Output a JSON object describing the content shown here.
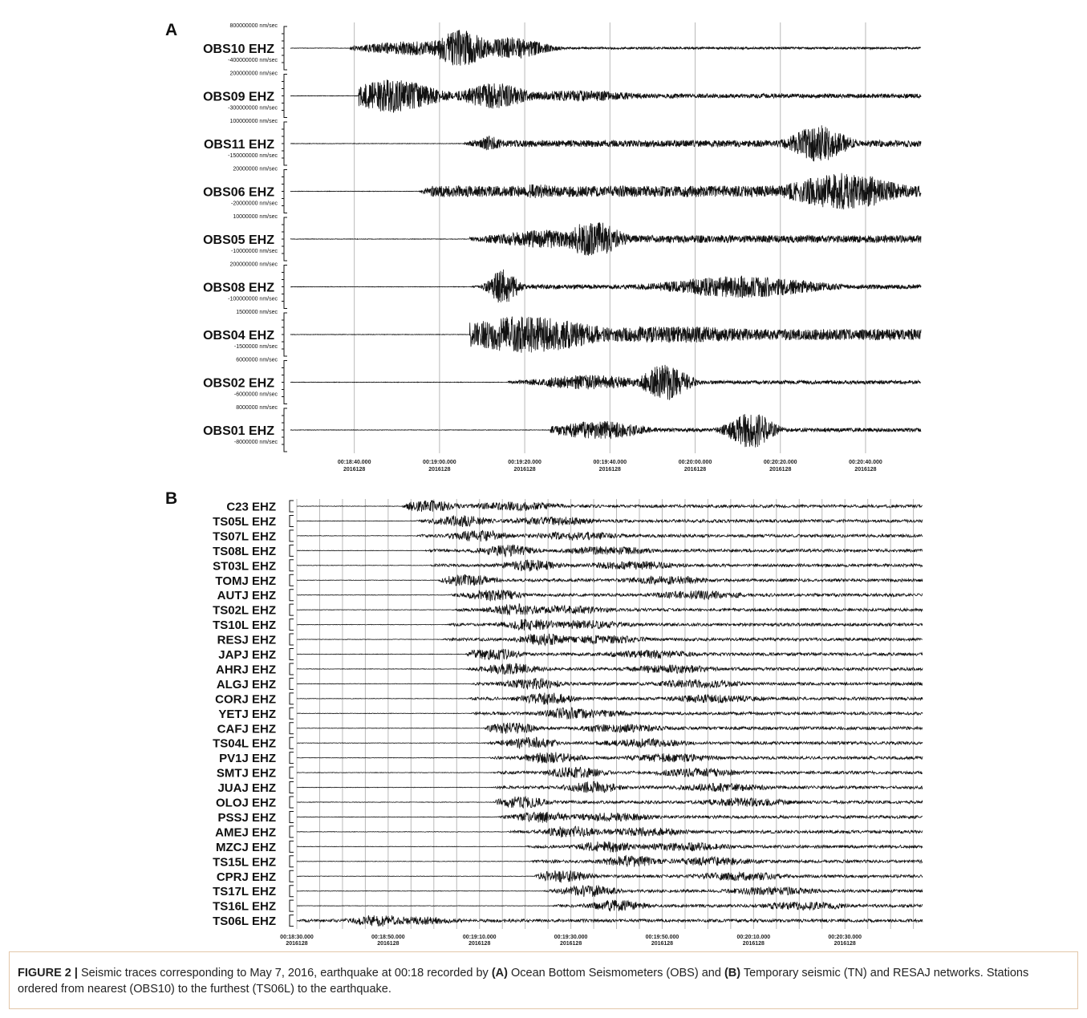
{
  "figure": {
    "panel_a_label": "A",
    "panel_b_label": "B",
    "caption": {
      "label": "FIGURE 2 |",
      "t1": "Seismic traces corresponding to May 7, 2016, earthquake at 00:18 recorded by",
      "a": "(A)",
      "t2": "Ocean Bottom Seismometers (OBS) and",
      "b": "(B)",
      "t3": "Temporary seismic (TN) and RESAJ networks. Stations ordered from nearest (OBS10) to the furthest (TS06L) to the earthquake."
    }
  },
  "chart_data": [
    {
      "type": "line",
      "panel": "A",
      "x_ticks": [
        {
          "time": "00:18:40.000",
          "date": "2016128"
        },
        {
          "time": "00:19:00.000",
          "date": "2016128"
        },
        {
          "time": "00:19:20.000",
          "date": "2016128"
        },
        {
          "time": "00:19:40.000",
          "date": "2016128"
        },
        {
          "time": "00:20:00.000",
          "date": "2016128"
        },
        {
          "time": "00:20:20.000",
          "date": "2016128"
        },
        {
          "time": "00:20:40.000",
          "date": "2016128"
        }
      ],
      "xlim": [
        "00:18:25",
        "00:20:53"
      ],
      "series": [
        {
          "name": "OBS10 EHZ",
          "amp_top": "800000000 nm/sec",
          "amp_bottom": "-400000000 nm/sec",
          "onset": 14,
          "bursts": [
            [
              40,
              5,
              1.0
            ],
            [
              52,
              6,
              0.6
            ],
            [
              30,
              10,
              0.4
            ]
          ],
          "tail": 0.06
        },
        {
          "name": "OBS09 EHZ",
          "amp_top": "200000000 nm/sec",
          "amp_bottom": "-300000000 nm/sec",
          "onset": 16,
          "bursts": [
            [
              24,
              8,
              0.9
            ],
            [
              48,
              6,
              0.7
            ],
            [
              68,
              12,
              0.3
            ]
          ],
          "tail": 0.12
        },
        {
          "name": "OBS11 EHZ",
          "amp_top": "100000000 nm/sec",
          "amp_bottom": "-150000000 nm/sec",
          "onset": 40,
          "bursts": [
            [
              47,
              2,
              0.45
            ],
            [
              124,
              5,
              1.0
            ]
          ],
          "tail": 0.18
        },
        {
          "name": "OBS06 EHZ",
          "amp_top": "20000000 nm/sec",
          "amp_bottom": "-20000000 nm/sec",
          "onset": 30,
          "bursts": [
            [
              58,
              4,
              0.4
            ],
            [
              130,
              10,
              1.0
            ]
          ],
          "tail": 0.3
        },
        {
          "name": "OBS05 EHZ",
          "amp_top": "10000000 nm/sec",
          "amp_bottom": "-10000000 nm/sec",
          "onset": 42,
          "bursts": [
            [
              71,
              5,
              1.0
            ],
            [
              60,
              10,
              0.5
            ]
          ],
          "tail": 0.2
        },
        {
          "name": "OBS08 EHZ",
          "amp_top": "200000000 nm/sec",
          "amp_bottom": "-100000000 nm/sec",
          "onset": 42,
          "bursts": [
            [
              50,
              2.5,
              1.0
            ],
            [
              106,
              14,
              0.6
            ]
          ],
          "tail": 0.12
        },
        {
          "name": "OBS04 EHZ",
          "amp_top": "1500000 nm/sec",
          "amp_bottom": "-1500000 nm/sec",
          "onset": 42,
          "bursts": [
            [
              55,
              14,
              1.0
            ],
            [
              90,
              20,
              0.45
            ]
          ],
          "tail": 0.3
        },
        {
          "name": "OBS02 EHZ",
          "amp_top": "6000000 nm/sec",
          "amp_bottom": "-6000000 nm/sec",
          "onset": 51,
          "bursts": [
            [
              88,
              4,
              1.0
            ],
            [
              70,
              10,
              0.4
            ]
          ],
          "tail": 0.1
        },
        {
          "name": "OBS01 EHZ",
          "amp_top": "8000000 nm/sec",
          "amp_bottom": "-8000000 nm/sec",
          "onset": 61,
          "bursts": [
            [
              108,
              4,
              1.0
            ],
            [
              72,
              8,
              0.5
            ]
          ],
          "tail": 0.1
        }
      ]
    },
    {
      "type": "line",
      "panel": "B",
      "x_ticks": [
        {
          "time": "00:18:30.000",
          "date": "2016128"
        },
        {
          "time": "00:18:50.000",
          "date": "2016128"
        },
        {
          "time": "00:19:10.000",
          "date": "2016128"
        },
        {
          "time": "00:19:30.000",
          "date": "2016128"
        },
        {
          "time": "00:19:50.000",
          "date": "2016128"
        },
        {
          "time": "00:20:10.000",
          "date": "2016128"
        },
        {
          "time": "00:20:30.000",
          "date": "2016128"
        }
      ],
      "xlim": [
        "00:18:30",
        "00:20:47"
      ],
      "series": [
        {
          "name": "C23 EHZ",
          "onset": 23
        },
        {
          "name": "TS05L EHZ",
          "onset": 26
        },
        {
          "name": "TS07L EHZ",
          "onset": 26
        },
        {
          "name": "TS08L EHZ",
          "onset": 28
        },
        {
          "name": "ST03L EHZ",
          "onset": 29
        },
        {
          "name": "TOMJ EHZ",
          "onset": 31
        },
        {
          "name": "AUTJ EHZ",
          "onset": 33
        },
        {
          "name": "TS02L EHZ",
          "onset": 34
        },
        {
          "name": "TS10L EHZ",
          "onset": 33
        },
        {
          "name": "RESJ EHZ",
          "onset": 32
        },
        {
          "name": "JAPJ EHZ",
          "onset": 37
        },
        {
          "name": "AHRJ EHZ",
          "onset": 37
        },
        {
          "name": "ALGJ EHZ",
          "onset": 38
        },
        {
          "name": "CORJ EHZ",
          "onset": 37
        },
        {
          "name": "YETJ EHZ",
          "onset": 38
        },
        {
          "name": "CAFJ EHZ",
          "onset": 41
        },
        {
          "name": "TS04L EHZ",
          "onset": 41
        },
        {
          "name": "PV1J EHZ",
          "onset": 42
        },
        {
          "name": "SMTJ EHZ",
          "onset": 43
        },
        {
          "name": "JUAJ EHZ",
          "onset": 43
        },
        {
          "name": "OLOJ EHZ",
          "onset": 43
        },
        {
          "name": "PSSJ EHZ",
          "onset": 44
        },
        {
          "name": "AMEJ EHZ",
          "onset": 46
        },
        {
          "name": "MZCJ EHZ",
          "onset": 50
        },
        {
          "name": "TS15L EHZ",
          "onset": 51
        },
        {
          "name": "CPRJ EHZ",
          "onset": 52
        },
        {
          "name": "TS17L EHZ",
          "onset": 54
        },
        {
          "name": "TS16L EHZ",
          "onset": 56
        },
        {
          "name": "TS06L EHZ",
          "onset": 0
        }
      ]
    }
  ]
}
